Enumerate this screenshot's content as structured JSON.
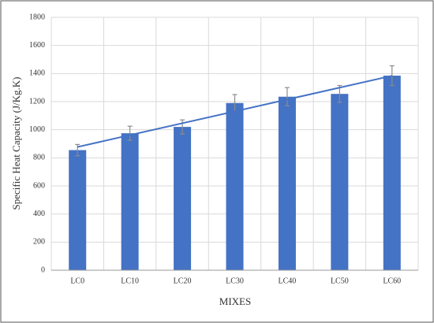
{
  "chart_data": {
    "type": "bar",
    "y_label": "Specific Heat Capacity (J/Kg.K)",
    "x_label": "MIXES",
    "categories": [
      "LC0",
      "LC10",
      "LC20",
      "LC30",
      "LC40",
      "LC50",
      "LC60"
    ],
    "values": [
      855,
      975,
      1020,
      1190,
      1235,
      1255,
      1385
    ],
    "errors": [
      40,
      50,
      50,
      60,
      65,
      60,
      70
    ],
    "color": "#4472c4",
    "error_color": "#8c8c8c",
    "trendline": true,
    "ylim": [
      0,
      1800
    ],
    "yticks": [
      0,
      200,
      400,
      600,
      800,
      1000,
      1200,
      1400,
      1600,
      1800
    ],
    "grid": true
  }
}
